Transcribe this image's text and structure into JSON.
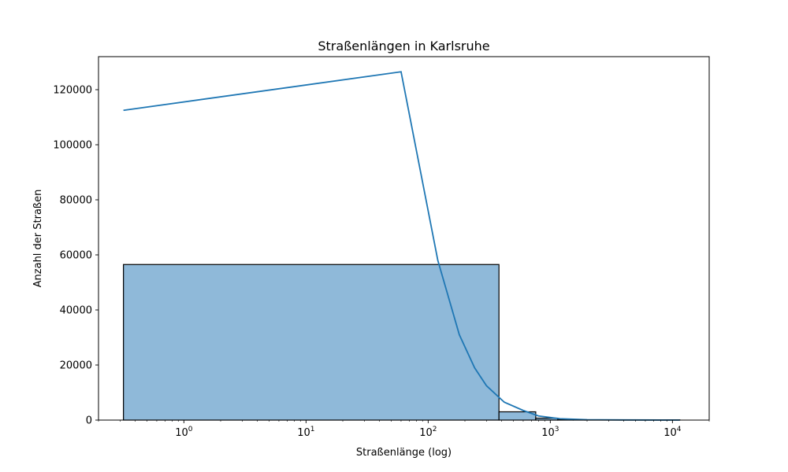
{
  "chart_data": {
    "type": "bar",
    "title": "Straßenlängen in Karlsruhe",
    "xlabel": "Straßenlänge (log)",
    "ylabel": "Anzahl der Straßen",
    "x_scale": "log",
    "xlim": [
      0.2,
      20000
    ],
    "ylim": [
      0,
      132000
    ],
    "grid": false,
    "x_ticks": [
      {
        "value": 1,
        "base": "10",
        "exp": "0"
      },
      {
        "value": 10,
        "base": "10",
        "exp": "1"
      },
      {
        "value": 100,
        "base": "10",
        "exp": "2"
      },
      {
        "value": 1000,
        "base": "10",
        "exp": "3"
      },
      {
        "value": 10000,
        "base": "10",
        "exp": "4"
      }
    ],
    "y_ticks": [
      0,
      20000,
      40000,
      60000,
      80000,
      100000,
      120000
    ],
    "y_tick_labels": [
      "0",
      "20000",
      "40000",
      "60000",
      "80000",
      "100000",
      "120000"
    ],
    "bars": [
      {
        "x_start": 0.32,
        "x_end": 380,
        "value": 56500
      },
      {
        "x_start": 380,
        "x_end": 760,
        "value": 3000
      },
      {
        "x_start": 760,
        "x_end": 1150,
        "value": 700
      },
      {
        "x_start": 1150,
        "x_end": 1540,
        "value": 300
      },
      {
        "x_start": 1540,
        "x_end": 1930,
        "value": 150
      },
      {
        "x_start": 1930,
        "x_end": 11500,
        "value": 80
      }
    ],
    "kde_series": {
      "x": [
        0.32,
        60,
        120,
        180,
        240,
        300,
        420,
        600,
        800,
        1200,
        2000,
        4000,
        8000,
        11500
      ],
      "y": [
        112500,
        126500,
        58000,
        31000,
        19000,
        12500,
        6500,
        3500,
        1500,
        500,
        150,
        50,
        15,
        5
      ]
    },
    "colors": {
      "bar_fill": "#8fb9d9",
      "bar_edge": "#000000",
      "line": "#1f77b4"
    }
  }
}
